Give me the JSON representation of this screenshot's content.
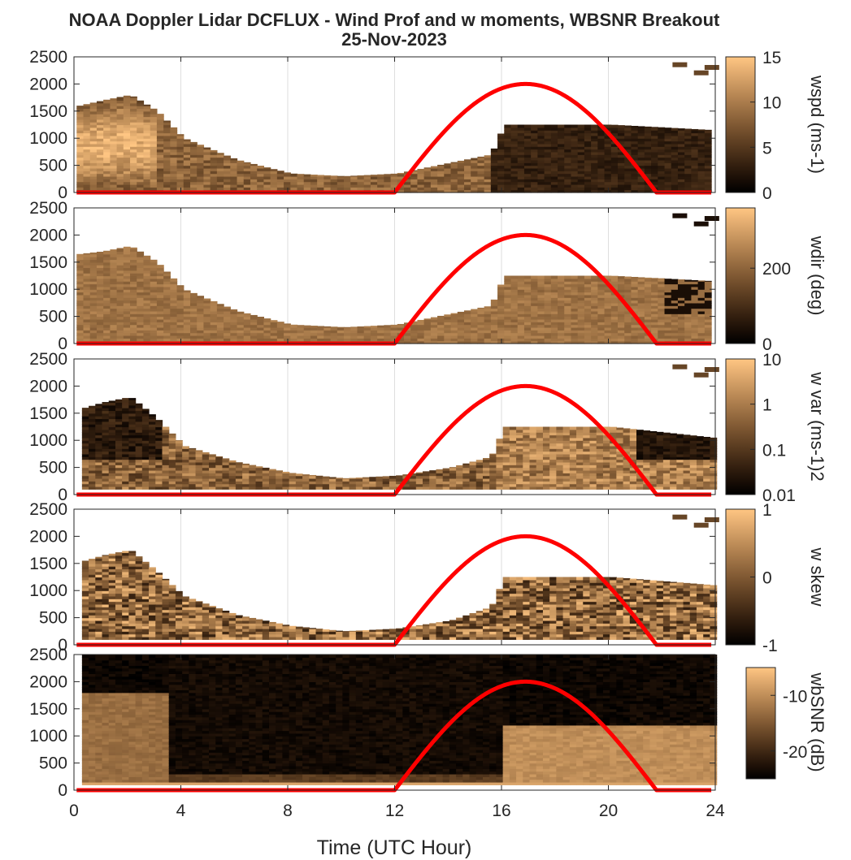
{
  "title": "NOAA Doppler Lidar DCFLUX - Wind Prof and w moments, WBSNR Breakout",
  "subtitle": "25-Nov-2023",
  "colors": {
    "colormap_low": "#000000",
    "colormap_high": "#ffc683",
    "sun_curve": "#ff0000",
    "axes": "#262626",
    "grid": "#dedede"
  },
  "chart_data": [
    {
      "type": "heatmap",
      "panel": "wspd",
      "colorbar_label": "wspd (ms-1)",
      "colorbar_ticks": [
        "0",
        "5",
        "10",
        "15"
      ],
      "colorbar_range": [
        0,
        15
      ],
      "x": [
        0,
        4,
        8,
        12,
        16,
        20,
        24
      ],
      "xlim": [
        0,
        24
      ],
      "ylim": [
        0,
        2500
      ],
      "yticks": [
        "0",
        "500",
        "1000",
        "1500",
        "2000",
        "2500"
      ],
      "data_top_profile": [
        [
          0.1,
          1600
        ],
        [
          1,
          1700
        ],
        [
          2,
          1800
        ],
        [
          3,
          1500
        ],
        [
          4,
          1000
        ],
        [
          6,
          600
        ],
        [
          8,
          350
        ],
        [
          10,
          300
        ],
        [
          12,
          350
        ],
        [
          14,
          550
        ],
        [
          15.5,
          700
        ],
        [
          16,
          1250
        ],
        [
          20,
          1250
        ],
        [
          23.8,
          1150
        ]
      ],
      "sun_curve": {
        "start_hour": 12.0,
        "end_hour": 21.8,
        "peak_hour": 16.9,
        "peak": 2000
      }
    },
    {
      "type": "heatmap",
      "panel": "wdir",
      "colorbar_label": "wdir (deg)",
      "colorbar_ticks": [
        "0",
        "200"
      ],
      "colorbar_range": [
        0,
        360
      ],
      "x": [
        0,
        4,
        8,
        12,
        16,
        20,
        24
      ],
      "xlim": [
        0,
        24
      ],
      "ylim": [
        0,
        2500
      ],
      "yticks": [
        "0",
        "500",
        "1000",
        "1500",
        "2000",
        "2500"
      ],
      "data_top_profile": [
        [
          0.1,
          1650
        ],
        [
          1,
          1700
        ],
        [
          2,
          1800
        ],
        [
          3,
          1500
        ],
        [
          4,
          1000
        ],
        [
          6,
          600
        ],
        [
          8,
          350
        ],
        [
          10,
          300
        ],
        [
          12,
          350
        ],
        [
          14,
          550
        ],
        [
          15.5,
          700
        ],
        [
          16,
          1250
        ],
        [
          20,
          1250
        ],
        [
          23.8,
          1150
        ]
      ],
      "sun_curve": {
        "start_hour": 12.0,
        "end_hour": 21.8,
        "peak_hour": 16.9,
        "peak": 2000
      }
    },
    {
      "type": "heatmap",
      "panel": "w var",
      "colorbar_label": "w var (ms-1)2",
      "colorbar_ticks": [
        "0.01",
        "0.1",
        "1",
        "10"
      ],
      "colorbar_range": [
        0.01,
        10
      ],
      "colorbar_scale": "log",
      "x": [
        0,
        4,
        8,
        12,
        16,
        20,
        24
      ],
      "xlim": [
        0,
        24
      ],
      "ylim": [
        0,
        2500
      ],
      "yticks": [
        "0",
        "500",
        "1000",
        "1500",
        "2000",
        "2500"
      ],
      "data_top_profile": [
        [
          0.3,
          1600
        ],
        [
          1,
          1700
        ],
        [
          2,
          1800
        ],
        [
          3,
          1400
        ],
        [
          4,
          900
        ],
        [
          6,
          600
        ],
        [
          8,
          400
        ],
        [
          10,
          300
        ],
        [
          12,
          350
        ],
        [
          14,
          500
        ],
        [
          15.5,
          700
        ],
        [
          16,
          1250
        ],
        [
          20,
          1250
        ],
        [
          23.8,
          1050
        ]
      ],
      "sun_curve": {
        "start_hour": 12.0,
        "end_hour": 21.8,
        "peak_hour": 16.9,
        "peak": 2000
      }
    },
    {
      "type": "heatmap",
      "panel": "w skew",
      "colorbar_label": "w skew",
      "colorbar_ticks": [
        "-1",
        "0",
        "1"
      ],
      "colorbar_range": [
        -1,
        1
      ],
      "x": [
        0,
        4,
        8,
        12,
        16,
        20,
        24
      ],
      "xlim": [
        0,
        24
      ],
      "ylim": [
        0,
        2500
      ],
      "yticks": [
        "0",
        "500",
        "1000",
        "1500",
        "2000",
        "2500"
      ],
      "data_top_profile": [
        [
          0.3,
          1550
        ],
        [
          1,
          1650
        ],
        [
          2,
          1750
        ],
        [
          3,
          1350
        ],
        [
          4,
          900
        ],
        [
          6,
          550
        ],
        [
          8,
          350
        ],
        [
          10,
          250
        ],
        [
          12,
          300
        ],
        [
          14,
          450
        ],
        [
          15.5,
          700
        ],
        [
          16,
          1250
        ],
        [
          20,
          1250
        ],
        [
          23.8,
          1100
        ]
      ],
      "sun_curve": {
        "start_hour": 12.0,
        "end_hour": 21.8,
        "peak_hour": 16.9,
        "peak": 2000
      }
    },
    {
      "type": "heatmap",
      "panel": "wbSNR",
      "colorbar_label": "wbSNR (dB)",
      "colorbar_ticks": [
        "-20",
        "-10"
      ],
      "colorbar_range": [
        -25,
        -5
      ],
      "x": [
        0,
        4,
        8,
        12,
        16,
        20,
        24
      ],
      "xticks": [
        "0",
        "4",
        "8",
        "12",
        "16",
        "20",
        "24"
      ],
      "xlabel": "Time (UTC Hour)",
      "xlim": [
        0,
        24
      ],
      "ylim": [
        0,
        2500
      ],
      "yticks": [
        "0",
        "500",
        "1000",
        "1500",
        "2000",
        "2500"
      ],
      "data_top_profile": [
        [
          0.3,
          2500
        ],
        [
          23.8,
          2500
        ]
      ],
      "sun_curve": {
        "start_hour": 12.0,
        "end_hour": 21.8,
        "peak_hour": 16.9,
        "peak": 2000
      }
    }
  ]
}
